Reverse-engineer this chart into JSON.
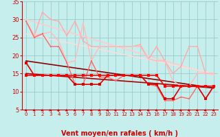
{
  "xlabel": "Vent moyen/en rafales ( km/h )",
  "xlim": [
    -0.5,
    23.5
  ],
  "ylim": [
    5,
    35
  ],
  "yticks": [
    5,
    10,
    15,
    20,
    25,
    30,
    35
  ],
  "xticks": [
    0,
    1,
    2,
    3,
    4,
    5,
    6,
    7,
    8,
    9,
    10,
    11,
    12,
    13,
    14,
    15,
    16,
    17,
    18,
    19,
    20,
    21,
    22,
    23
  ],
  "background_color": "#c6eeec",
  "grid_color": "#99cccc",
  "series": [
    {
      "x": [
        0,
        1,
        2,
        3,
        4,
        5,
        6,
        7,
        8,
        9,
        10,
        11,
        12,
        13,
        14,
        15,
        16,
        17,
        18,
        19,
        20,
        21,
        22,
        23
      ],
      "y": [
        29.5,
        25.5,
        32.0,
        30.0,
        29.5,
        25.5,
        29.5,
        24.0,
        22.5,
        22.5,
        22.5,
        22.5,
        22.5,
        22.5,
        23.0,
        19.0,
        22.5,
        18.5,
        15.0,
        17.0,
        22.5,
        22.5,
        15.0,
        15.0
      ],
      "color": "#ffaaaa",
      "lw": 1.0,
      "marker": "s",
      "ms": 2.0,
      "zorder": 3
    },
    {
      "x": [
        0,
        1,
        2,
        3,
        4,
        5,
        6,
        7,
        8,
        9,
        10,
        11,
        12,
        13,
        14,
        15,
        16,
        17,
        18,
        19,
        20,
        21,
        22,
        23
      ],
      "y": [
        29.5,
        25.5,
        26.0,
        26.5,
        24.0,
        18.0,
        18.5,
        29.0,
        18.5,
        22.5,
        22.5,
        22.5,
        22.5,
        22.5,
        22.5,
        19.0,
        18.5,
        18.5,
        13.0,
        11.5,
        11.5,
        15.0,
        15.0,
        15.0
      ],
      "color": "#ffbbbb",
      "lw": 1.0,
      "marker": "s",
      "ms": 2.0,
      "zorder": 3
    },
    {
      "x": [
        0,
        1,
        2,
        3,
        4,
        5,
        6,
        7,
        8,
        9,
        10,
        11,
        12,
        13,
        14,
        15,
        16,
        17,
        18,
        19,
        20,
        21,
        22,
        23
      ],
      "y": [
        29.5,
        25.0,
        26.0,
        22.5,
        22.5,
        18.0,
        12.0,
        12.0,
        18.5,
        14.0,
        14.0,
        13.0,
        14.5,
        14.5,
        14.5,
        12.0,
        11.5,
        7.5,
        7.5,
        8.5,
        8.0,
        11.5,
        8.0,
        11.5
      ],
      "color": "#ff6666",
      "lw": 1.0,
      "marker": "s",
      "ms": 2.0,
      "zorder": 4
    },
    {
      "x": [
        0,
        1,
        2,
        3,
        4,
        5,
        6,
        7,
        8,
        9,
        10,
        11,
        12,
        13,
        14,
        15,
        16,
        17,
        18,
        19,
        20,
        21,
        22,
        23
      ],
      "y": [
        18.0,
        14.5,
        14.5,
        14.5,
        14.5,
        14.5,
        12.0,
        12.0,
        12.0,
        12.0,
        14.5,
        14.5,
        14.5,
        14.5,
        14.5,
        12.0,
        12.0,
        8.0,
        8.0,
        11.5,
        11.5,
        11.5,
        8.0,
        11.5
      ],
      "color": "#dd0000",
      "lw": 1.2,
      "marker": "s",
      "ms": 2.5,
      "zorder": 5
    },
    {
      "x": [
        0,
        1,
        2,
        3,
        4,
        5,
        6,
        7,
        8,
        9,
        10,
        11,
        12,
        13,
        14,
        15,
        16,
        17,
        18,
        19,
        20,
        21,
        22,
        23
      ],
      "y": [
        14.5,
        14.5,
        14.5,
        14.5,
        14.5,
        14.5,
        14.5,
        14.5,
        14.5,
        14.5,
        14.5,
        14.5,
        14.5,
        14.5,
        14.5,
        14.5,
        14.5,
        11.5,
        11.5,
        11.5,
        11.5,
        11.5,
        11.5,
        11.5
      ],
      "color": "#ff0000",
      "lw": 1.2,
      "marker": "s",
      "ms": 2.5,
      "zorder": 5
    },
    {
      "x": [
        0,
        23
      ],
      "y": [
        18.5,
        11.0
      ],
      "color": "#880000",
      "lw": 1.2,
      "marker": null,
      "ms": 0,
      "zorder": 2
    },
    {
      "x": [
        0,
        23
      ],
      "y": [
        15.0,
        11.0
      ],
      "color": "#aa0000",
      "lw": 1.2,
      "marker": null,
      "ms": 0,
      "zorder": 2
    },
    {
      "x": [
        0,
        23
      ],
      "y": [
        30.0,
        14.5
      ],
      "color": "#ffcccc",
      "lw": 1.2,
      "marker": null,
      "ms": 0,
      "zorder": 2
    },
    {
      "x": [
        0,
        23
      ],
      "y": [
        26.0,
        15.0
      ],
      "color": "#ffdddd",
      "lw": 1.0,
      "marker": null,
      "ms": 0,
      "zorder": 2
    }
  ],
  "arrow_color": "#cc0000",
  "xlabel_color": "#cc0000",
  "xlabel_fontsize": 7,
  "tick_fontsize": 6,
  "tick_color": "#cc0000"
}
